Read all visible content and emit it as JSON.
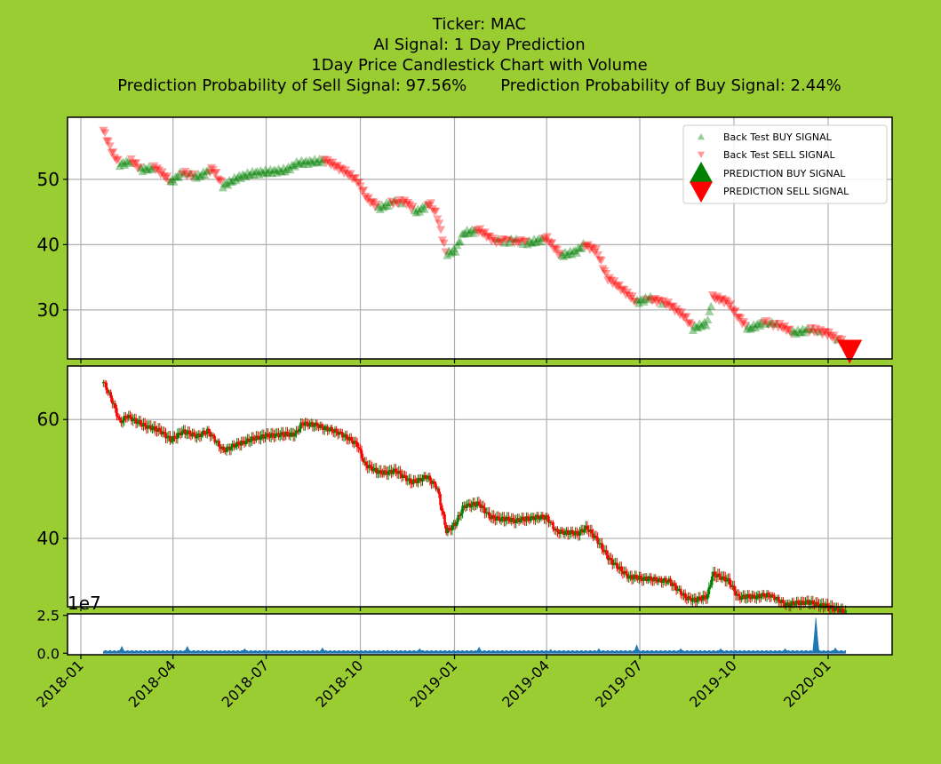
{
  "header": {
    "ticker": "Ticker: MAC",
    "signal": "AI Signal: 1 Day Prediction",
    "chart_title": "1Day Price Candlestick Chart with Volume",
    "sell_prob": "Prediction Probability of Sell Signal: 97.56%",
    "buy_prob": "Prediction Probability of Buy Signal: 2.44%"
  },
  "colors": {
    "background": "#9acd32",
    "buy": "#008000",
    "sell": "#ff0000",
    "volume": "#1f77b4",
    "grid": "#b0b0b0"
  },
  "chart_data": [
    {
      "type": "scatter",
      "panel": "signals",
      "ylim": [
        22.5,
        59.5
      ],
      "yticks": [
        30,
        40,
        50
      ],
      "ytick_labels": [
        "30",
        "40",
        "50"
      ],
      "legend": {
        "placement": "upper-right",
        "entries": [
          "Back Test BUY SIGNAL",
          "Back Test SELL SIGNAL",
          "PREDICTION BUY SIGNAL",
          "PREDICTION SELL SIGNAL"
        ]
      },
      "price_path": [
        [
          "2018-01-23",
          57.5
        ],
        [
          "2018-02-01",
          54.0
        ],
        [
          "2018-02-08",
          52.3
        ],
        [
          "2018-02-20",
          52.8
        ],
        [
          "2018-03-01",
          51.5
        ],
        [
          "2018-03-15",
          51.8
        ],
        [
          "2018-03-30",
          49.6
        ],
        [
          "2018-04-10",
          51.0
        ],
        [
          "2018-04-25",
          50.4
        ],
        [
          "2018-05-10",
          51.6
        ],
        [
          "2018-05-20",
          49.0
        ],
        [
          "2018-06-05",
          50.4
        ],
        [
          "2018-06-20",
          51.0
        ],
        [
          "2018-07-05",
          51.2
        ],
        [
          "2018-07-20",
          51.4
        ],
        [
          "2018-08-01",
          52.5
        ],
        [
          "2018-08-15",
          52.7
        ],
        [
          "2018-08-28",
          52.9
        ],
        [
          "2018-09-15",
          51.3
        ],
        [
          "2018-09-28",
          49.8
        ],
        [
          "2018-10-08",
          47.0
        ],
        [
          "2018-10-20",
          45.6
        ],
        [
          "2018-11-01",
          46.5
        ],
        [
          "2018-11-15",
          46.5
        ],
        [
          "2018-11-25",
          45.0
        ],
        [
          "2018-12-08",
          46.3
        ],
        [
          "2018-12-15",
          44.5
        ],
        [
          "2018-12-24",
          38.5
        ],
        [
          "2019-01-02",
          39.2
        ],
        [
          "2019-01-10",
          41.8
        ],
        [
          "2019-01-25",
          42.2
        ],
        [
          "2019-02-10",
          40.5
        ],
        [
          "2019-02-25",
          40.6
        ],
        [
          "2019-03-15",
          40.3
        ],
        [
          "2019-04-01",
          41.0
        ],
        [
          "2019-04-15",
          38.3
        ],
        [
          "2019-04-30",
          39.0
        ],
        [
          "2019-05-08",
          40.0
        ],
        [
          "2019-05-20",
          39.0
        ],
        [
          "2019-05-30",
          35.0
        ],
        [
          "2019-06-15",
          33.0
        ],
        [
          "2019-06-28",
          31.2
        ],
        [
          "2019-07-10",
          31.8
        ],
        [
          "2019-07-30",
          30.8
        ],
        [
          "2019-08-15",
          28.8
        ],
        [
          "2019-08-22",
          27.2
        ],
        [
          "2019-09-05",
          28.0
        ],
        [
          "2019-09-10",
          32.0
        ],
        [
          "2019-09-25",
          31.2
        ],
        [
          "2019-10-05",
          29.0
        ],
        [
          "2019-10-15",
          27.1
        ],
        [
          "2019-10-30",
          28.1
        ],
        [
          "2019-11-15",
          27.6
        ],
        [
          "2019-11-28",
          26.5
        ],
        [
          "2019-12-15",
          27.0
        ],
        [
          "2020-01-01",
          26.4
        ],
        [
          "2020-01-10",
          25.4
        ],
        [
          "2020-01-16",
          25.3
        ]
      ],
      "prediction": {
        "x": "2020-01-22",
        "y": 23.8,
        "signal": "sell"
      }
    },
    {
      "type": "candlestick",
      "panel": "price",
      "ylim": [
        28.5,
        69.0
      ],
      "yticks": [
        40,
        60
      ],
      "ytick_labels": [
        "40",
        "60"
      ],
      "price_path": [
        [
          "2018-01-23",
          66.3
        ],
        [
          "2018-02-01",
          63.0
        ],
        [
          "2018-02-08",
          59.5
        ],
        [
          "2018-02-15",
          60.6
        ],
        [
          "2018-03-01",
          59.2
        ],
        [
          "2018-03-20",
          58.0
        ],
        [
          "2018-03-30",
          56.5
        ],
        [
          "2018-04-10",
          58.0
        ],
        [
          "2018-04-25",
          57.2
        ],
        [
          "2018-05-05",
          58.1
        ],
        [
          "2018-05-20",
          54.8
        ],
        [
          "2018-06-05",
          56.0
        ],
        [
          "2018-06-25",
          57.1
        ],
        [
          "2018-07-10",
          57.4
        ],
        [
          "2018-07-30",
          57.6
        ],
        [
          "2018-08-05",
          59.4
        ],
        [
          "2018-08-20",
          59.0
        ],
        [
          "2018-09-10",
          57.8
        ],
        [
          "2018-09-28",
          55.8
        ],
        [
          "2018-10-05",
          52.5
        ],
        [
          "2018-10-20",
          51.0
        ],
        [
          "2018-11-05",
          51.3
        ],
        [
          "2018-11-20",
          49.4
        ],
        [
          "2018-12-05",
          50.4
        ],
        [
          "2018-12-15",
          48.5
        ],
        [
          "2018-12-24",
          41.2
        ],
        [
          "2019-01-02",
          42.5
        ],
        [
          "2019-01-10",
          45.5
        ],
        [
          "2019-01-25",
          45.8
        ],
        [
          "2019-02-05",
          43.5
        ],
        [
          "2019-03-01",
          43.0
        ],
        [
          "2019-03-20",
          43.5
        ],
        [
          "2019-04-01",
          43.6
        ],
        [
          "2019-04-10",
          41.2
        ],
        [
          "2019-05-01",
          40.8
        ],
        [
          "2019-05-10",
          41.8
        ],
        [
          "2019-05-20",
          39.8
        ],
        [
          "2019-06-01",
          36.5
        ],
        [
          "2019-06-20",
          33.5
        ],
        [
          "2019-07-10",
          33.2
        ],
        [
          "2019-07-30",
          32.8
        ],
        [
          "2019-08-15",
          30.0
        ],
        [
          "2019-08-25",
          29.6
        ],
        [
          "2019-09-05",
          30.3
        ],
        [
          "2019-09-10",
          34.0
        ],
        [
          "2019-09-25",
          33.0
        ],
        [
          "2019-10-05",
          30.1
        ],
        [
          "2019-10-20",
          30.2
        ],
        [
          "2019-11-05",
          30.5
        ],
        [
          "2019-11-20",
          28.9
        ],
        [
          "2019-12-10",
          29.3
        ],
        [
          "2019-12-30",
          28.6
        ],
        [
          "2020-01-10",
          28.0
        ],
        [
          "2020-01-18",
          27.5
        ]
      ]
    },
    {
      "type": "area",
      "panel": "volume",
      "ylim": [
        -0.1,
        2.6
      ],
      "yticks": [
        0.0,
        2.5
      ],
      "ytick_labels": [
        "0.0",
        "2.5"
      ],
      "scale_label": "1e7",
      "baseline": 0.1,
      "spikes": [
        [
          "2018-02-10",
          0.45
        ],
        [
          "2018-04-15",
          0.45
        ],
        [
          "2018-06-10",
          0.3
        ],
        [
          "2018-08-25",
          0.35
        ],
        [
          "2018-11-28",
          0.3
        ],
        [
          "2019-01-25",
          0.4
        ],
        [
          "2019-04-05",
          0.25
        ],
        [
          "2019-05-22",
          0.3
        ],
        [
          "2019-06-28",
          0.55
        ],
        [
          "2019-08-10",
          0.3
        ],
        [
          "2019-09-18",
          0.3
        ],
        [
          "2019-11-20",
          0.3
        ],
        [
          "2019-12-20",
          2.35
        ],
        [
          "2020-01-08",
          0.35
        ]
      ]
    }
  ],
  "x_axis": {
    "ticks": [
      "2018-01",
      "2018-04",
      "2018-07",
      "2018-10",
      "2019-01",
      "2019-04",
      "2019-07",
      "2019-10",
      "2020-01"
    ]
  }
}
